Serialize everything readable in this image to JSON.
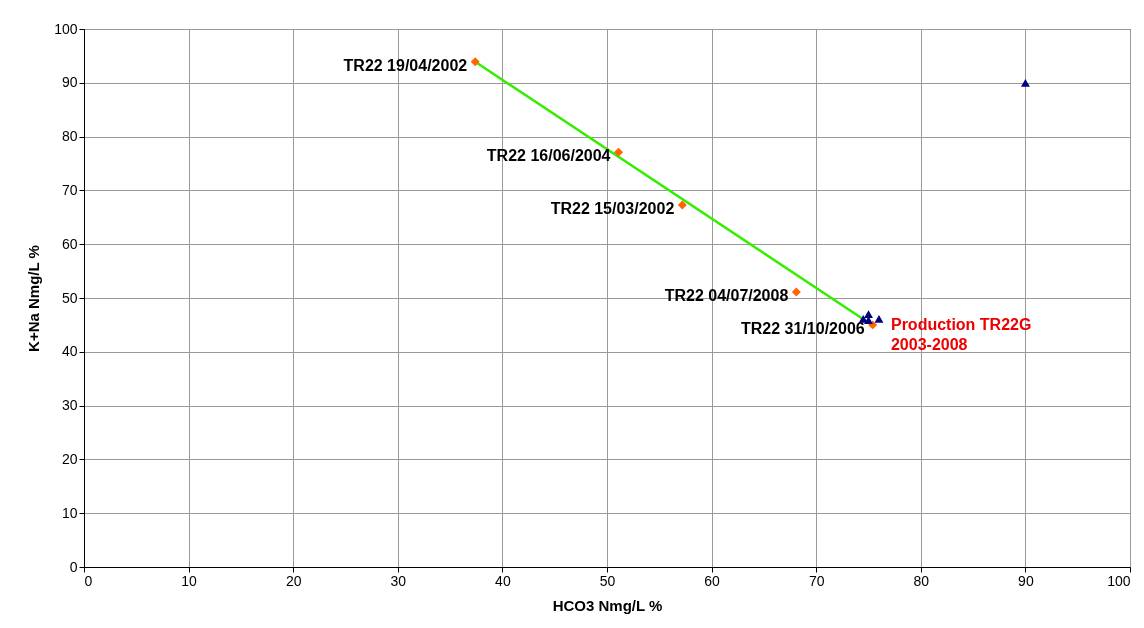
{
  "chart_data": {
    "type": "scatter",
    "xlabel": "HCO3 Nmg/L %",
    "ylabel": "K+Na Nmg/L %",
    "xlim": [
      0,
      100
    ],
    "ylim": [
      0,
      100
    ],
    "xticks": [
      0,
      10,
      20,
      30,
      40,
      50,
      60,
      70,
      80,
      90,
      100
    ],
    "yticks": [
      0,
      10,
      20,
      30,
      40,
      50,
      60,
      70,
      80,
      90,
      100
    ],
    "grid": true,
    "series": [
      {
        "type": "line",
        "color": "#33ee00",
        "x": [
          37.4,
          74.4
        ],
        "values": [
          93.9,
          46.2
        ],
        "marker": "none"
      },
      {
        "color": "#ff6600",
        "x": [
          37.4,
          51.1,
          57.2,
          68.1,
          75.4
        ],
        "values": [
          93.9,
          77.1,
          67.3,
          51.1,
          45.0
        ],
        "marker": "diamond"
      },
      {
        "name": "Production TR22G 2003-2008",
        "color": "#000080",
        "x": [
          75.0,
          74.5,
          76.0,
          75.0
        ],
        "values": [
          47.0,
          46.1,
          46.1,
          45.9
        ],
        "marker": "triangle"
      },
      {
        "color": "#000080",
        "x": [
          90
        ],
        "values": [
          90
        ],
        "marker": "triangle"
      }
    ],
    "annotations": [
      {
        "text": "TR22 19/04/2002",
        "x": 37.4,
        "y": 93.9
      },
      {
        "text": "TR22 16/06/2004",
        "x": 51.1,
        "y": 77.1
      },
      {
        "text": "TR22 15/03/2002",
        "x": 57.2,
        "y": 67.3
      },
      {
        "text": "TR22 04/07/2008",
        "x": 68.1,
        "y": 51.1
      },
      {
        "text": "TR22 31/10/2006",
        "x": 75.4,
        "y": 45.0
      }
    ]
  }
}
